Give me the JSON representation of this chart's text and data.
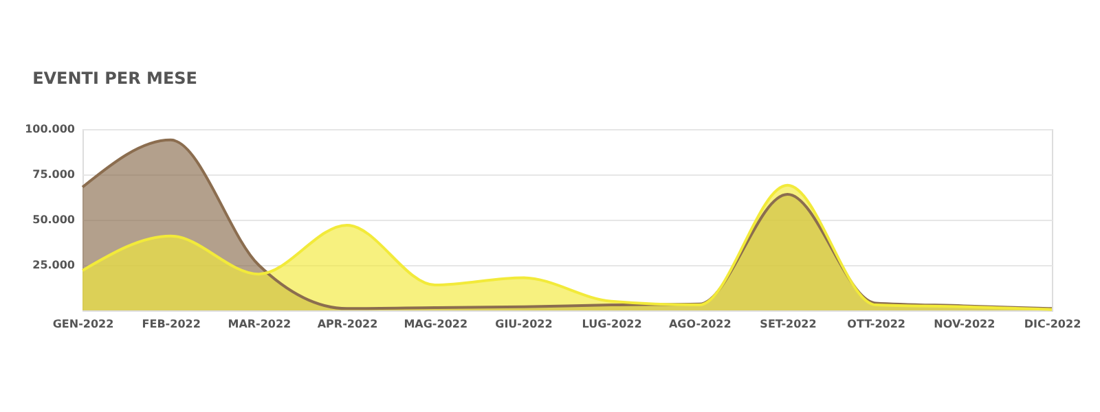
{
  "chart_data": {
    "type": "area",
    "title": "EVENTI PER MESE",
    "categories": [
      "GEN-2022",
      "FEB-2022",
      "MAR-2022",
      "APR-2022",
      "MAG-2022",
      "GIU-2022",
      "LUG-2022",
      "AGO-2022",
      "SET-2022",
      "OTT-2022",
      "NOV-2022",
      "DIC-2022"
    ],
    "series": [
      {
        "color": "#8b6d4f",
        "values": [
          68000,
          94000,
          25000,
          1000,
          1500,
          2000,
          3000,
          3500,
          64000,
          4000,
          2500,
          1000
        ]
      },
      {
        "color": "#f2ea3a",
        "values": [
          22000,
          41000,
          20000,
          47000,
          14000,
          18000,
          5000,
          3000,
          69000,
          3000,
          2000,
          500
        ]
      }
    ],
    "ylim": [
      0,
      100000
    ],
    "yticks": [
      {
        "value": 25000,
        "label": "25.000"
      },
      {
        "value": 50000,
        "label": "50.000"
      },
      {
        "value": 75000,
        "label": "75.000"
      },
      {
        "value": 100000,
        "label": "100.000"
      }
    ],
    "grid": "y"
  }
}
